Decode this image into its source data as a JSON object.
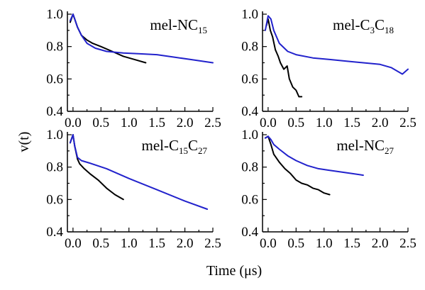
{
  "figure": {
    "xlabel": "Time (μs)",
    "ylabel": "v(t)"
  },
  "colors": {
    "black_series": "#000000",
    "blue_series": "#2222cc"
  },
  "chart_data": [
    {
      "type": "line",
      "title_main": "mel-NC",
      "title_sub": "15",
      "title_after": "",
      "xlim": [
        -0.1,
        2.5
      ],
      "ylim": [
        0.4,
        1.0
      ],
      "xticks": [
        0.0,
        0.5,
        1.0,
        1.5,
        2.0,
        2.5
      ],
      "xtick_labels": [
        "0.0",
        "0.5",
        "1.0",
        "1.5",
        "2.0",
        "2.5"
      ],
      "yticks": [
        0.4,
        0.6,
        0.8,
        1.0
      ],
      "ytick_labels": [
        "0.4",
        "0.6",
        "0.8",
        "1.0"
      ],
      "series": [
        {
          "color": "#000000",
          "x": [
            -0.05,
            0.0,
            0.03,
            0.08,
            0.15,
            0.25,
            0.35,
            0.5,
            0.7,
            0.9,
            1.1,
            1.3
          ],
          "y": [
            0.95,
            1.0,
            0.97,
            0.92,
            0.87,
            0.84,
            0.82,
            0.8,
            0.77,
            0.74,
            0.72,
            0.7
          ]
        },
        {
          "color": "#2222cc",
          "x": [
            -0.05,
            0.0,
            0.03,
            0.08,
            0.15,
            0.25,
            0.4,
            0.6,
            0.9,
            1.2,
            1.5,
            1.8,
            2.1,
            2.5
          ],
          "y": [
            0.96,
            1.0,
            0.97,
            0.92,
            0.87,
            0.82,
            0.79,
            0.77,
            0.76,
            0.755,
            0.75,
            0.735,
            0.72,
            0.7
          ]
        }
      ]
    },
    {
      "type": "line",
      "title_main": "mel-C",
      "title_sub": "3",
      "title_after": "C",
      "title_sub2": "18",
      "xlim": [
        -0.1,
        2.5
      ],
      "ylim": [
        0.4,
        1.0
      ],
      "xticks": [
        0.0,
        0.5,
        1.0,
        1.5,
        2.0,
        2.5
      ],
      "xtick_labels": [
        "0.0",
        "0.5",
        "1.0",
        "1.5",
        "2.0",
        "2.5"
      ],
      "yticks": [
        0.4,
        0.6,
        0.8,
        1.0
      ],
      "ytick_labels": [
        "0.4",
        "0.6",
        "0.8",
        "1.0"
      ],
      "series": [
        {
          "color": "#000000",
          "x": [
            -0.03,
            0.0,
            0.04,
            0.08,
            0.13,
            0.18,
            0.22,
            0.28,
            0.34,
            0.38,
            0.44,
            0.5,
            0.55,
            0.6
          ],
          "y": [
            0.93,
            0.97,
            0.9,
            0.86,
            0.78,
            0.74,
            0.7,
            0.66,
            0.68,
            0.6,
            0.55,
            0.53,
            0.49,
            0.49
          ]
        },
        {
          "color": "#2222cc",
          "x": [
            -0.05,
            0.0,
            0.05,
            0.1,
            0.2,
            0.35,
            0.5,
            0.8,
            1.1,
            1.4,
            1.7,
            2.0,
            2.2,
            2.4,
            2.5
          ],
          "y": [
            0.9,
            0.99,
            0.97,
            0.9,
            0.82,
            0.77,
            0.75,
            0.73,
            0.72,
            0.71,
            0.7,
            0.69,
            0.67,
            0.63,
            0.66
          ]
        }
      ]
    },
    {
      "type": "line",
      "title_main": "mel-C",
      "title_sub": "15",
      "title_after": "C",
      "title_sub2": "27",
      "xlim": [
        -0.1,
        2.5
      ],
      "ylim": [
        0.4,
        1.0
      ],
      "xticks": [
        0.0,
        0.5,
        1.0,
        1.5,
        2.0,
        2.5
      ],
      "xtick_labels": [
        "0.0",
        "0.5",
        "1.0",
        "1.5",
        "2.0",
        "2.5"
      ],
      "yticks": [
        0.4,
        0.6,
        0.8,
        1.0
      ],
      "ytick_labels": [
        "0.4",
        "0.6",
        "0.8",
        "1.0"
      ],
      "series": [
        {
          "color": "#000000",
          "x": [
            -0.05,
            0.0,
            0.03,
            0.08,
            0.12,
            0.2,
            0.3,
            0.45,
            0.6,
            0.75,
            0.9
          ],
          "y": [
            0.95,
            1.0,
            0.93,
            0.85,
            0.82,
            0.79,
            0.76,
            0.72,
            0.67,
            0.63,
            0.6
          ]
        },
        {
          "color": "#2222cc",
          "x": [
            -0.05,
            0.0,
            0.03,
            0.08,
            0.15,
            0.3,
            0.6,
            1.0,
            1.5,
            2.0,
            2.4
          ],
          "y": [
            0.95,
            1.0,
            0.93,
            0.86,
            0.84,
            0.825,
            0.79,
            0.73,
            0.66,
            0.59,
            0.54
          ]
        }
      ]
    },
    {
      "type": "line",
      "title_main": "mel-NC",
      "title_sub": "27",
      "title_after": "",
      "xlim": [
        -0.1,
        2.5
      ],
      "ylim": [
        0.4,
        1.0
      ],
      "xticks": [
        0.0,
        0.5,
        1.0,
        1.5,
        2.0,
        2.5
      ],
      "xtick_labels": [
        "0.0",
        "0.5",
        "1.0",
        "1.5",
        "2.0",
        "2.5"
      ],
      "yticks": [
        0.4,
        0.6,
        0.8,
        1.0
      ],
      "ytick_labels": [
        "0.4",
        "0.6",
        "0.8",
        "1.0"
      ],
      "series": [
        {
          "color": "#000000",
          "x": [
            -0.05,
            0.0,
            0.05,
            0.1,
            0.2,
            0.3,
            0.4,
            0.5,
            0.6,
            0.7,
            0.8,
            0.9,
            1.0,
            1.1
          ],
          "y": [
            0.98,
            0.99,
            0.94,
            0.88,
            0.83,
            0.79,
            0.76,
            0.72,
            0.7,
            0.69,
            0.67,
            0.66,
            0.64,
            0.63
          ]
        },
        {
          "color": "#2222cc",
          "x": [
            -0.05,
            0.0,
            0.05,
            0.1,
            0.2,
            0.35,
            0.5,
            0.7,
            0.9,
            1.1,
            1.3,
            1.5,
            1.7
          ],
          "y": [
            0.98,
            0.99,
            0.97,
            0.94,
            0.91,
            0.87,
            0.84,
            0.81,
            0.79,
            0.78,
            0.77,
            0.76,
            0.75
          ]
        }
      ]
    }
  ]
}
